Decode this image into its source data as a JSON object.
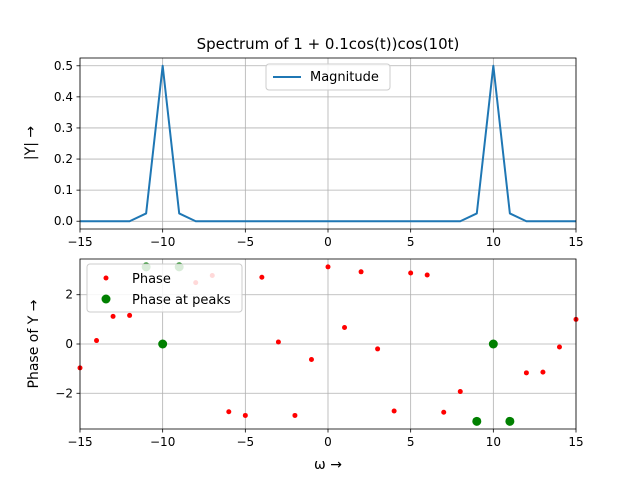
{
  "figure": {
    "title": "Spectrum of 1 + 0.1cos(t))cos(10t)",
    "xlabel": "ω →"
  },
  "chart_data": [
    {
      "type": "line",
      "title": "Spectrum of 1 + 0.1cos(t))cos(10t)",
      "xlabel": "",
      "ylabel": "|Y| →",
      "xlim": [
        -15,
        15
      ],
      "ylim": [
        -0.025,
        0.525
      ],
      "xticks": [
        -15,
        -10,
        -5,
        0,
        5,
        10,
        15
      ],
      "yticks": [
        0.0,
        0.1,
        0.2,
        0.3,
        0.4,
        0.5
      ],
      "grid": true,
      "legend": "top-center",
      "series": [
        {
          "name": "Magnitude",
          "color": "#1f77b4",
          "x": [
            -15,
            -14,
            -13,
            -12,
            -11,
            -10,
            -9,
            -8,
            -7,
            -6,
            -5,
            -4,
            -3,
            -2,
            -1,
            0,
            1,
            2,
            3,
            4,
            5,
            6,
            7,
            8,
            9,
            10,
            11,
            12,
            13,
            14,
            15
          ],
          "y": [
            0,
            0,
            0,
            0,
            0.025,
            0.5,
            0.025,
            0,
            0,
            0,
            0,
            0,
            0,
            0,
            0,
            0,
            0,
            0,
            0,
            0,
            0,
            0,
            0,
            0,
            0.025,
            0.5,
            0.025,
            0,
            0,
            0,
            0
          ]
        }
      ]
    },
    {
      "type": "scatter",
      "xlabel": "ω →",
      "ylabel": "Phase of Y →",
      "xlim": [
        -15,
        15
      ],
      "ylim": [
        -3.45,
        3.45
      ],
      "xticks": [
        -15,
        -10,
        -5,
        0,
        5,
        10,
        15
      ],
      "yticks": [
        -2,
        0,
        2
      ],
      "grid": true,
      "legend": "top-left",
      "series": [
        {
          "name": "Phase",
          "color": "#ff0000",
          "x": [
            -15,
            -14,
            -13,
            -12,
            -11,
            -10,
            -9,
            -8,
            -7,
            -6,
            -5,
            -4,
            -3,
            -2,
            -1,
            0,
            1,
            2,
            3,
            4,
            5,
            6,
            7,
            8,
            9,
            10,
            11,
            12,
            13,
            14,
            15
          ],
          "y": [
            -0.97,
            0.14,
            1.12,
            1.16,
            3.14,
            0,
            3.14,
            2.49,
            2.78,
            -2.75,
            -2.9,
            2.71,
            0.08,
            -2.9,
            -0.63,
            3.13,
            0.67,
            2.93,
            -0.2,
            -2.72,
            2.88,
            2.8,
            -2.77,
            -1.93,
            -3.14,
            0,
            -3.14,
            -1.17,
            -1.14,
            -0.12,
            1.0
          ]
        },
        {
          "name": "Phase at peaks",
          "color": "#008000",
          "x": [
            -11,
            -10,
            -9,
            9,
            10,
            11
          ],
          "y": [
            3.13,
            0,
            3.13,
            -3.14,
            0,
            -3.14
          ]
        }
      ]
    }
  ]
}
